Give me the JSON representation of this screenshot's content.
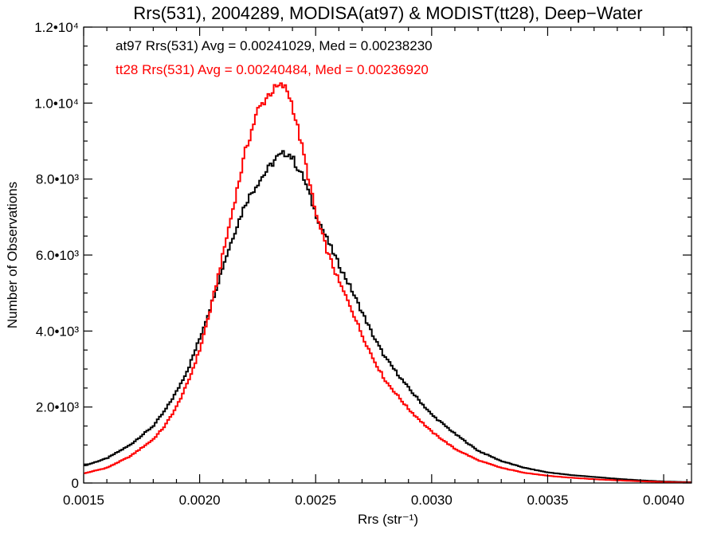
{
  "chart_data": {
    "type": "line",
    "title": "Rrs(531), 2004289, MODISA(at97) & MODIST(tt28), Deep−Water",
    "xlabel": "Rrs (str⁻¹)",
    "ylabel": "Number of Observations",
    "xlim": [
      0.0015,
      0.00412
    ],
    "ylim": [
      0,
      12000
    ],
    "x_ticks": [
      0.0015,
      0.002,
      0.0025,
      0.003,
      0.0035,
      0.004
    ],
    "x_tick_labels": [
      "0.0015",
      "0.0020",
      "0.0025",
      "0.0030",
      "0.0035",
      "0.0040"
    ],
    "y_ticks": [
      0,
      2000,
      4000,
      6000,
      8000,
      10000,
      12000
    ],
    "y_tick_labels": [
      "0",
      "2.0•10³",
      "4.0•10³",
      "6.0•10³",
      "8.0•10³",
      "1.0•10⁴",
      "1.2•10⁴"
    ],
    "grid": false,
    "legend_position": "top-left",
    "series": [
      {
        "name": "at97 Rrs(531) Avg = 0.00241029, Med = 0.00238230",
        "color": "#000000",
        "x": [
          0.0015,
          0.0016,
          0.0017,
          0.0018,
          0.00185,
          0.0019,
          0.00195,
          0.002,
          0.00205,
          0.0021,
          0.00215,
          0.0022,
          0.00225,
          0.0023,
          0.00233,
          0.00236,
          0.00238,
          0.0024,
          0.00245,
          0.0025,
          0.00255,
          0.0026,
          0.00265,
          0.0027,
          0.00275,
          0.0028,
          0.0029,
          0.003,
          0.0031,
          0.0032,
          0.0033,
          0.0034,
          0.0035,
          0.0036,
          0.0037,
          0.0038,
          0.0039,
          0.004,
          0.00412
        ],
        "y": [
          450,
          650,
          1000,
          1500,
          1900,
          2400,
          3000,
          3800,
          4700,
          5700,
          6600,
          7400,
          7900,
          8300,
          8550,
          8650,
          8700,
          8550,
          8000,
          7100,
          6400,
          5750,
          5150,
          4500,
          3850,
          3300,
          2500,
          1800,
          1300,
          850,
          580,
          400,
          280,
          210,
          160,
          110,
          70,
          40,
          20
        ]
      },
      {
        "name": "tt28 Rrs(531) Avg = 0.00240484, Med = 0.00236920",
        "color": "#ff0000",
        "x": [
          0.0015,
          0.0016,
          0.0017,
          0.0018,
          0.00185,
          0.0019,
          0.00195,
          0.002,
          0.00205,
          0.0021,
          0.00215,
          0.0022,
          0.00225,
          0.0023,
          0.00233,
          0.00236,
          0.00238,
          0.0024,
          0.00245,
          0.0025,
          0.00255,
          0.0026,
          0.00265,
          0.0027,
          0.00275,
          0.0028,
          0.0029,
          0.003,
          0.0031,
          0.0032,
          0.0033,
          0.0034,
          0.0035,
          0.0036,
          0.0037,
          0.0038,
          0.0039,
          0.004,
          0.00412
        ],
        "y": [
          250,
          400,
          700,
          1150,
          1500,
          2000,
          2650,
          3500,
          4650,
          6000,
          7400,
          8800,
          9800,
          10250,
          10400,
          10450,
          10300,
          9950,
          8600,
          7100,
          6100,
          5300,
          4650,
          3900,
          3250,
          2700,
          1950,
          1350,
          900,
          600,
          400,
          270,
          190,
          140,
          100,
          70,
          45,
          25,
          10
        ]
      }
    ]
  }
}
